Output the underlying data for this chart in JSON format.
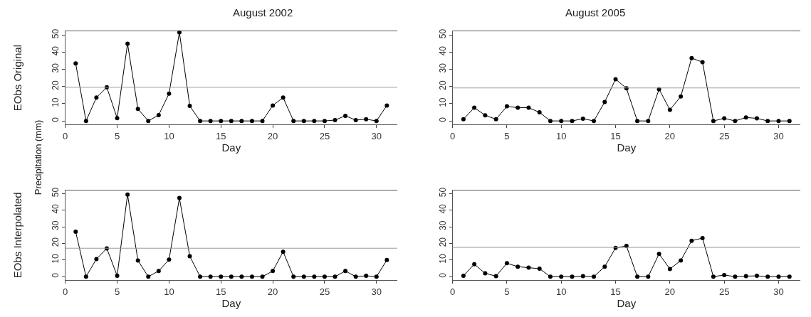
{
  "chart_data": [
    {
      "type": "line",
      "title": "August 2002",
      "xlabel": "Day",
      "ylabel": "Precipitation (mm)",
      "annotations": [
        "EObs Original"
      ],
      "x": [
        1,
        2,
        3,
        4,
        5,
        6,
        7,
        8,
        9,
        10,
        11,
        12,
        13,
        14,
        15,
        16,
        17,
        18,
        19,
        20,
        21,
        22,
        23,
        24,
        25,
        26,
        27,
        28,
        29,
        30,
        31
      ],
      "series": [
        {
          "color": "#000000",
          "values": [
            33.5,
            0,
            13.6,
            19.6,
            1.6,
            45,
            7,
            0,
            3.4,
            15.9,
            51.6,
            8.7,
            0,
            0,
            0,
            0,
            0,
            0,
            0,
            9,
            13.6,
            0,
            0,
            0,
            0,
            0.5,
            3,
            0.5,
            1,
            0,
            9
          ]
        }
      ],
      "xlim": [
        0,
        32
      ],
      "xticks": [
        0,
        5,
        10,
        15,
        20,
        25,
        30
      ],
      "ylim": [
        -2,
        52
      ],
      "yticks": [
        0,
        10,
        20,
        30,
        40,
        50
      ],
      "ref_lines": [
        {
          "axis": "y",
          "value": 19.6,
          "color": "#999999"
        }
      ],
      "marker": "circle",
      "line_style": "solid"
    },
    {
      "type": "line",
      "title": "August 2005",
      "xlabel": "Day",
      "x": [
        1,
        2,
        3,
        4,
        5,
        6,
        7,
        8,
        9,
        10,
        11,
        12,
        13,
        14,
        15,
        16,
        17,
        18,
        19,
        20,
        21,
        22,
        23,
        24,
        25,
        26,
        27,
        28,
        29,
        30,
        31
      ],
      "series": [
        {
          "color": "#000000",
          "values": [
            1,
            7.7,
            3.3,
            1,
            8.5,
            7.7,
            7.7,
            5,
            0,
            0,
            0,
            1.3,
            0,
            11,
            24.3,
            19,
            0,
            0,
            18.5,
            6.5,
            14.2,
            36.6,
            34.2,
            0,
            1.5,
            0,
            2,
            1.5,
            0,
            0,
            0
          ]
        }
      ],
      "xlim": [
        0,
        32
      ],
      "xticks": [
        0,
        5,
        10,
        15,
        20,
        25,
        30
      ],
      "ylim": [
        -2,
        52
      ],
      "yticks": [
        0,
        10,
        20,
        30,
        40,
        50
      ],
      "ref_lines": [
        {
          "axis": "y",
          "value": 19.2,
          "color": "#999999"
        }
      ],
      "marker": "circle",
      "line_style": "solid"
    },
    {
      "type": "line",
      "xlabel": "Day",
      "annotations": [
        "EObs Interpolated"
      ],
      "x": [
        1,
        2,
        3,
        4,
        5,
        6,
        7,
        8,
        9,
        10,
        11,
        12,
        13,
        14,
        15,
        16,
        17,
        18,
        19,
        20,
        21,
        22,
        23,
        24,
        25,
        26,
        27,
        28,
        29,
        30,
        31
      ],
      "series": [
        {
          "color": "#000000",
          "values": [
            27,
            0,
            10.6,
            17,
            0.5,
            49.4,
            9.7,
            0,
            3.4,
            10.2,
            47.3,
            12.3,
            0,
            0,
            0,
            0,
            0,
            0,
            0,
            3.4,
            15,
            0,
            0,
            0,
            0,
            0,
            3.4,
            0,
            0.5,
            0,
            10
          ]
        }
      ],
      "xlim": [
        0,
        32
      ],
      "xticks": [
        0,
        5,
        10,
        15,
        20,
        25,
        30
      ],
      "ylim": [
        -2,
        52
      ],
      "yticks": [
        0,
        10,
        20,
        30,
        40,
        50
      ],
      "ref_lines": [
        {
          "axis": "y",
          "value": 17.1,
          "color": "#999999"
        }
      ],
      "marker": "circle",
      "line_style": "solid"
    },
    {
      "type": "line",
      "xlabel": "Day",
      "x": [
        1,
        2,
        3,
        4,
        5,
        6,
        7,
        8,
        9,
        10,
        11,
        12,
        13,
        14,
        15,
        16,
        17,
        18,
        19,
        20,
        21,
        22,
        23,
        24,
        25,
        26,
        27,
        28,
        29,
        30,
        31
      ],
      "series": [
        {
          "color": "#000000",
          "values": [
            0.5,
            7.5,
            2,
            0.3,
            8.1,
            6,
            5.4,
            4.8,
            0,
            0,
            0,
            0.3,
            0,
            6,
            17.3,
            18.5,
            0,
            0,
            13.7,
            4.6,
            9.7,
            21.6,
            23.2,
            0,
            1,
            0,
            0.3,
            0.5,
            0,
            0,
            0
          ]
        }
      ],
      "xlim": [
        0,
        32
      ],
      "xticks": [
        0,
        5,
        10,
        15,
        20,
        25,
        30
      ],
      "ylim": [
        -2,
        52
      ],
      "yticks": [
        0,
        10,
        20,
        30,
        40,
        50
      ],
      "ref_lines": [
        {
          "axis": "y",
          "value": 17.6,
          "color": "#999999"
        }
      ],
      "marker": "circle",
      "line_style": "solid"
    }
  ]
}
